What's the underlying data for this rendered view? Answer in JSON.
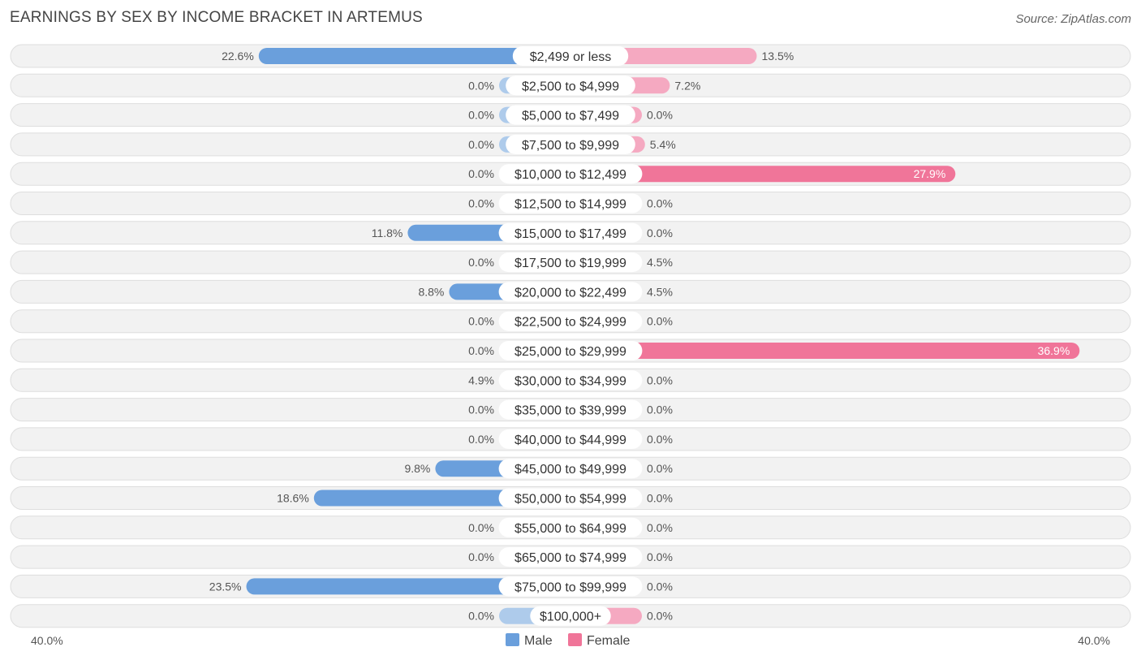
{
  "title": "EARNINGS BY SEX BY INCOME BRACKET IN ARTEMUS",
  "source": "Source: ZipAtlas.com",
  "colors": {
    "male_strong": "#6a9fdc",
    "male_light": "#aecbeb",
    "female_strong": "#f07599",
    "female_light": "#f5a9c1",
    "row_bg": "#f2f2f2",
    "row_border": "#dedede"
  },
  "chart_data": {
    "type": "bar",
    "orientation": "horizontal-diverging",
    "categories": [
      "$2,499 or less",
      "$2,500 to $4,999",
      "$5,000 to $7,499",
      "$7,500 to $9,999",
      "$10,000 to $12,499",
      "$12,500 to $14,999",
      "$15,000 to $17,499",
      "$17,500 to $19,999",
      "$20,000 to $22,499",
      "$22,500 to $24,999",
      "$25,000 to $29,999",
      "$30,000 to $34,999",
      "$35,000 to $39,999",
      "$40,000 to $44,999",
      "$45,000 to $49,999",
      "$50,000 to $54,999",
      "$55,000 to $64,999",
      "$65,000 to $74,999",
      "$75,000 to $99,999",
      "$100,000+"
    ],
    "series": [
      {
        "name": "Male",
        "values": [
          22.6,
          0.0,
          0.0,
          0.0,
          0.0,
          0.0,
          11.8,
          0.0,
          8.8,
          0.0,
          0.0,
          4.9,
          0.0,
          0.0,
          9.8,
          18.6,
          0.0,
          0.0,
          23.5,
          0.0
        ],
        "labels": [
          "22.6%",
          "0.0%",
          "0.0%",
          "0.0%",
          "0.0%",
          "0.0%",
          "11.8%",
          "0.0%",
          "8.8%",
          "0.0%",
          "0.0%",
          "4.9%",
          "0.0%",
          "0.0%",
          "9.8%",
          "18.6%",
          "0.0%",
          "0.0%",
          "23.5%",
          "0.0%"
        ]
      },
      {
        "name": "Female",
        "values": [
          13.5,
          7.2,
          0.0,
          5.4,
          27.9,
          0.0,
          0.0,
          4.5,
          4.5,
          0.0,
          36.9,
          0.0,
          0.0,
          0.0,
          0.0,
          0.0,
          0.0,
          0.0,
          0.0,
          0.0
        ],
        "labels": [
          "13.5%",
          "7.2%",
          "0.0%",
          "5.4%",
          "27.9%",
          "0.0%",
          "0.0%",
          "4.5%",
          "4.5%",
          "0.0%",
          "36.9%",
          "0.0%",
          "0.0%",
          "0.0%",
          "0.0%",
          "0.0%",
          "0.0%",
          "0.0%",
          "0.0%",
          "0.0%"
        ]
      }
    ],
    "xlim": [
      -40,
      40
    ],
    "axis_labels": {
      "left": "40.0%",
      "right": "40.0%"
    },
    "legend": {
      "position": "bottom-center",
      "items": [
        "Male",
        "Female"
      ]
    },
    "title": "EARNINGS BY SEX BY INCOME BRACKET IN ARTEMUS"
  }
}
